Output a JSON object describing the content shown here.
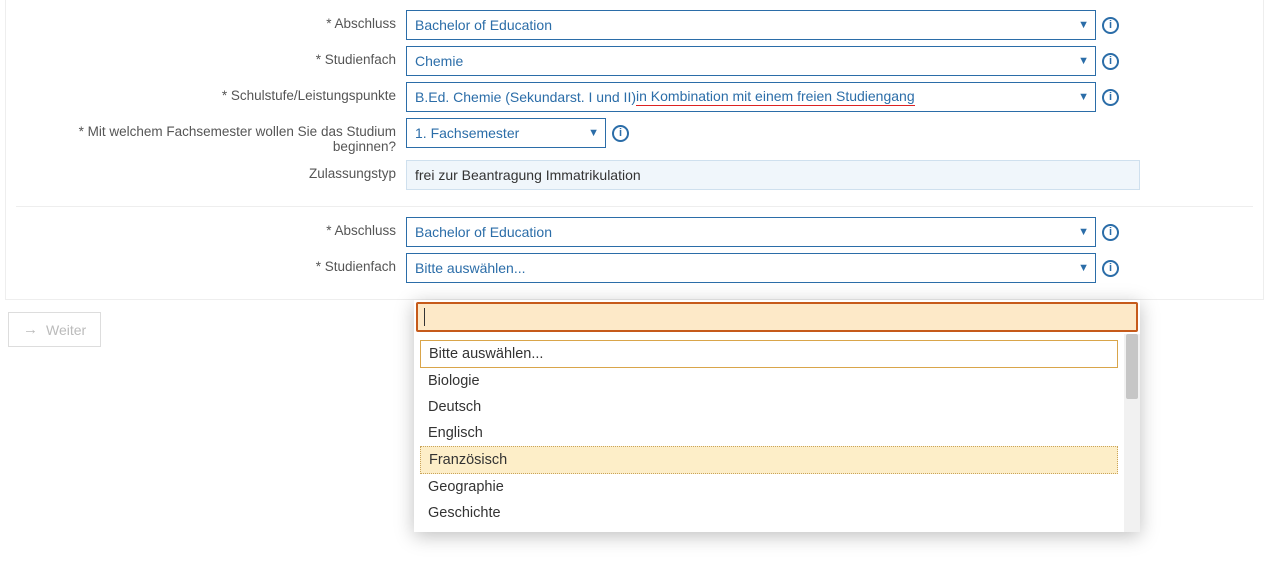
{
  "colors": {
    "primary": "#2b6da8",
    "underline": "#d22",
    "dropdown_search_bg": "#fde9c8",
    "dropdown_search_border": "#c65a1a",
    "dropdown_hover_bg": "#fdeec8",
    "readonly_bg": "#f0f6fb"
  },
  "section1": {
    "abschluss_label": "* Abschluss",
    "abschluss_value": "Bachelor of Education",
    "studienfach_label": "* Studienfach",
    "studienfach_value": "Chemie",
    "schulstufe_label": "* Schulstufe/Leistungspunkte",
    "schulstufe_value_a": "B.Ed. Chemie (Sekundarst. I und II) ",
    "schulstufe_value_b": "in Kombination mit einem freien Studiengang",
    "fachsemester_label": "* Mit welchem Fachsemester wollen Sie das Studium beginnen?",
    "fachsemester_value": "1. Fachsemester",
    "zulassungstyp_label": "Zulassungstyp",
    "zulassungstyp_value": "frei zur Beantragung Immatrikulation"
  },
  "section2": {
    "abschluss_label": "* Abschluss",
    "abschluss_value": "Bachelor of Education",
    "studienfach_label": "* Studienfach",
    "studienfach_value": "Bitte auswählen...",
    "dropdown": {
      "search_value": "",
      "options": [
        {
          "label": "Bitte auswählen...",
          "selected": true,
          "hovered": false
        },
        {
          "label": "Biologie",
          "selected": false,
          "hovered": false
        },
        {
          "label": "Deutsch",
          "selected": false,
          "hovered": false
        },
        {
          "label": "Englisch",
          "selected": false,
          "hovered": false
        },
        {
          "label": "Französisch",
          "selected": false,
          "hovered": true
        },
        {
          "label": "Geographie",
          "selected": false,
          "hovered": false
        },
        {
          "label": "Geschichte",
          "selected": false,
          "hovered": false
        }
      ]
    }
  },
  "buttons": {
    "weiter": "Weiter"
  }
}
